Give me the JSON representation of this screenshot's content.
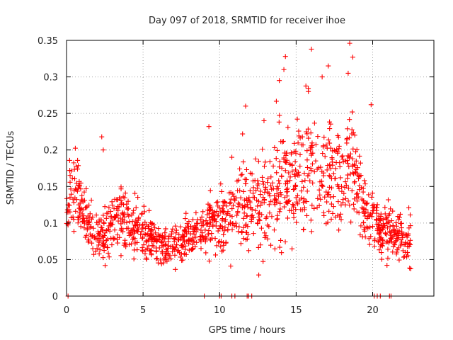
{
  "chart_data": {
    "type": "scatter",
    "title": "Day 097 of 2018, SRMTID for receiver ihoe",
    "xlabel": "GPS time / hours",
    "ylabel": "SRMTID / TECUs",
    "xlim": [
      0,
      24
    ],
    "ylim": [
      0,
      0.35
    ],
    "x_ticks": [
      0,
      5,
      10,
      15,
      20
    ],
    "y_ticks": [
      0,
      0.05,
      0.1,
      0.15,
      0.2,
      0.25,
      0.3,
      0.35
    ],
    "y_tick_labels": [
      "0",
      "0.05",
      "0.1",
      "0.15",
      "0.2",
      "0.25",
      "0.3",
      "0.35"
    ],
    "grid": true,
    "marker": "+",
    "color": "#ff0000",
    "series": [
      {
        "name": "SRMTID",
        "trend": {
          "x": [
            0.0,
            0.3,
            0.6,
            1.0,
            1.5,
            2.0,
            2.5,
            3.0,
            3.5,
            4.0,
            4.5,
            5.0,
            5.5,
            6.0,
            6.5,
            7.0,
            7.5,
            8.0,
            8.5,
            9.0,
            9.5,
            10.0,
            10.5,
            11.0,
            11.5,
            12.0,
            12.5,
            13.0,
            13.5,
            14.0,
            14.5,
            15.0,
            15.5,
            16.0,
            16.5,
            17.0,
            17.5,
            18.0,
            18.5,
            19.0,
            19.5,
            20.0,
            20.5,
            21.0,
            21.5,
            22.0,
            22.5
          ],
          "y": [
            0.13,
            0.14,
            0.15,
            0.12,
            0.1,
            0.08,
            0.085,
            0.1,
            0.11,
            0.1,
            0.095,
            0.09,
            0.08,
            0.07,
            0.065,
            0.07,
            0.075,
            0.08,
            0.085,
            0.09,
            0.1,
            0.105,
            0.1,
            0.115,
            0.125,
            0.13,
            0.125,
            0.135,
            0.14,
            0.155,
            0.145,
            0.16,
            0.165,
            0.17,
            0.165,
            0.16,
            0.155,
            0.17,
            0.18,
            0.16,
            0.11,
            0.105,
            0.095,
            0.09,
            0.085,
            0.075,
            0.085
          ],
          "spread": [
            0.04,
            0.045,
            0.045,
            0.035,
            0.03,
            0.03,
            0.035,
            0.035,
            0.035,
            0.035,
            0.035,
            0.03,
            0.025,
            0.025,
            0.025,
            0.025,
            0.025,
            0.03,
            0.03,
            0.035,
            0.04,
            0.04,
            0.035,
            0.045,
            0.05,
            0.055,
            0.06,
            0.065,
            0.07,
            0.08,
            0.07,
            0.07,
            0.075,
            0.075,
            0.07,
            0.065,
            0.06,
            0.065,
            0.07,
            0.06,
            0.04,
            0.035,
            0.035,
            0.035,
            0.03,
            0.03,
            0.035
          ]
        },
        "n_points": 1400,
        "outliers": [
          {
            "x": 2.3,
            "y": 0.218
          },
          {
            "x": 2.4,
            "y": 0.2
          },
          {
            "x": 9.3,
            "y": 0.232
          },
          {
            "x": 11.7,
            "y": 0.26
          },
          {
            "x": 14.3,
            "y": 0.328
          },
          {
            "x": 14.2,
            "y": 0.31
          },
          {
            "x": 16.0,
            "y": 0.338
          },
          {
            "x": 16.7,
            "y": 0.3
          },
          {
            "x": 18.5,
            "y": 0.346
          },
          {
            "x": 18.7,
            "y": 0.327
          },
          {
            "x": 18.4,
            "y": 0.305
          },
          {
            "x": 15.8,
            "y": 0.28
          },
          {
            "x": 17.1,
            "y": 0.315
          },
          {
            "x": 19.9,
            "y": 0.262
          },
          {
            "x": 13.9,
            "y": 0.295
          },
          {
            "x": 12.9,
            "y": 0.24
          },
          {
            "x": 10.8,
            "y": 0.19
          },
          {
            "x": 11.5,
            "y": 0.222
          }
        ],
        "zero_points_x": [
          0.1,
          9.0,
          10.0,
          10.1,
          10.8,
          11.0,
          11.8,
          11.9,
          12.1,
          20.1,
          20.3,
          20.5,
          21.1,
          21.2
        ]
      }
    ]
  }
}
